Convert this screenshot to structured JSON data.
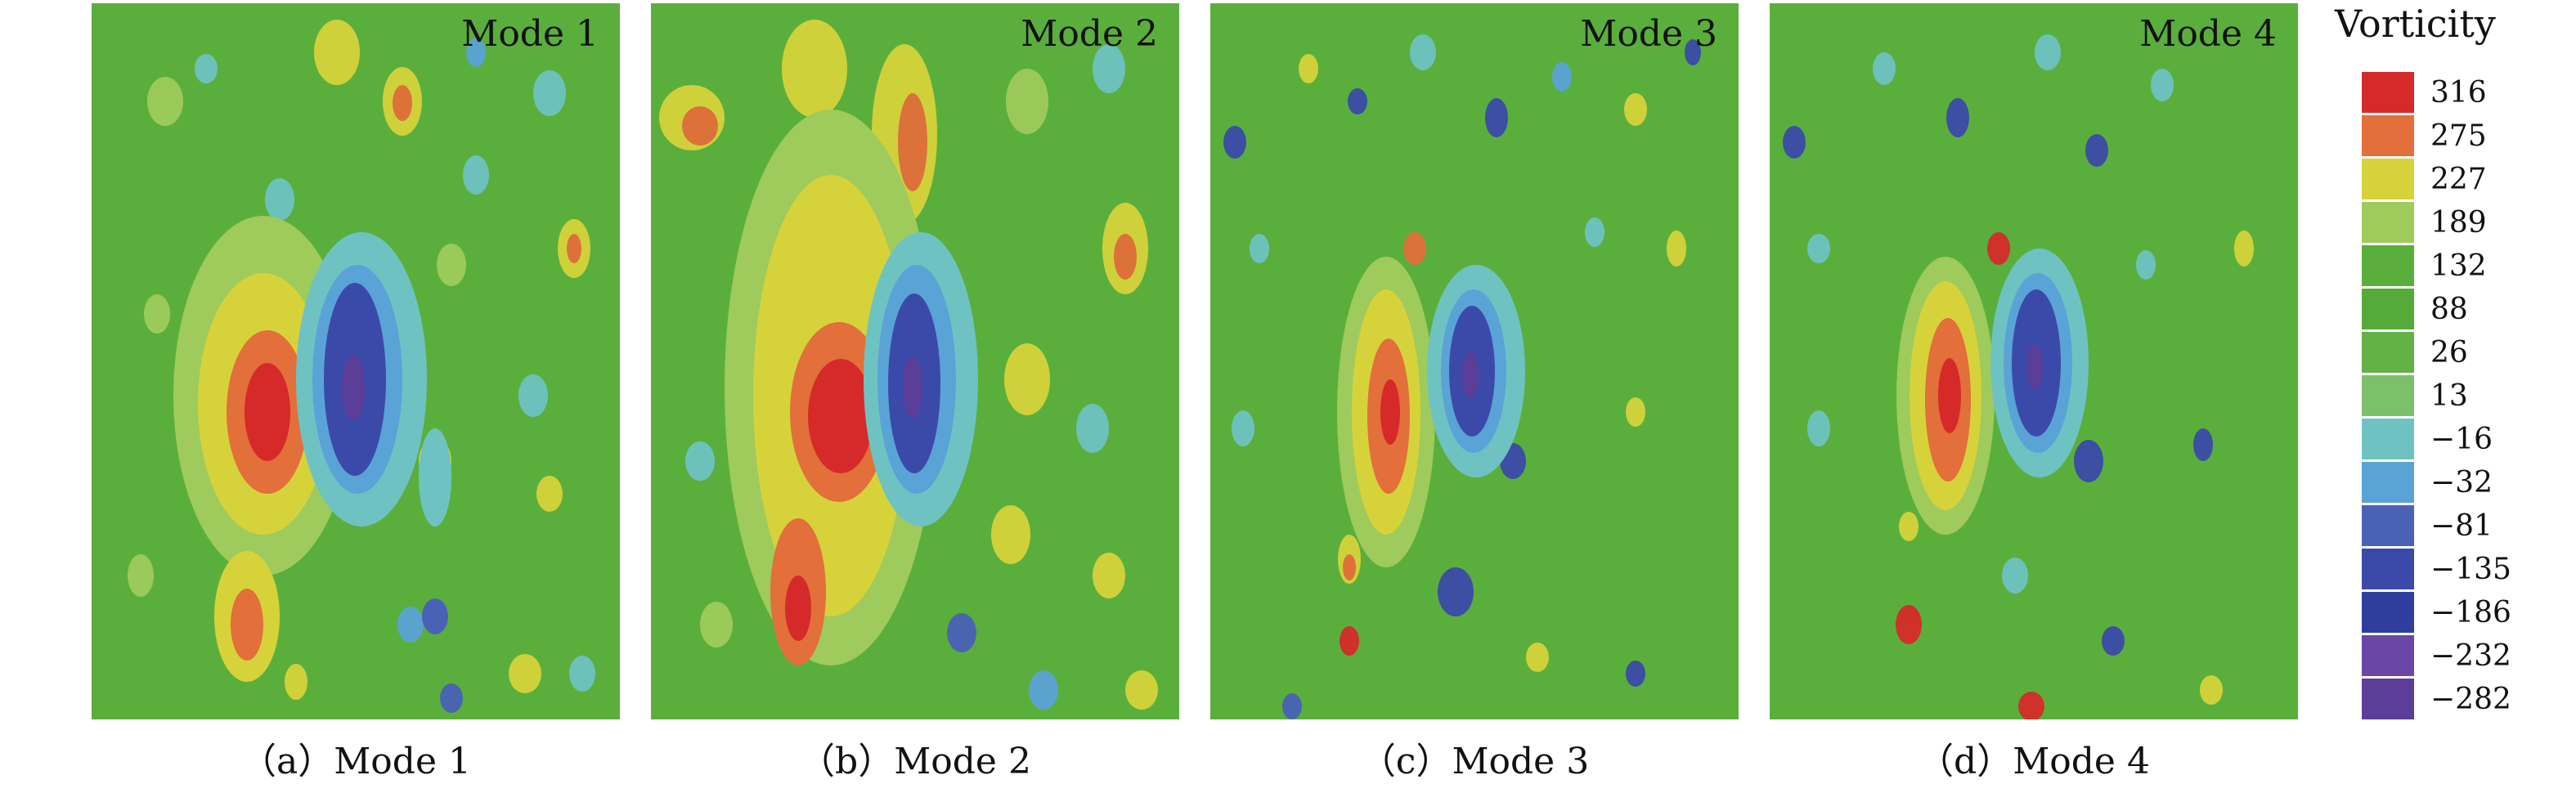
{
  "panels": [
    {
      "mode_label": "Mode 1",
      "caption": "（a）Mode 1"
    },
    {
      "mode_label": "Mode 2",
      "caption": "（b）Mode 2"
    },
    {
      "mode_label": "Mode 3",
      "caption": "（c）Mode 3"
    },
    {
      "mode_label": "Mode 4",
      "caption": "（d）Mode 4"
    }
  ],
  "legend": {
    "title": "Vorticity",
    "levels": [
      {
        "label": "316",
        "color": "#d62a2a"
      },
      {
        "label": "275",
        "color": "#e36f3a"
      },
      {
        "label": "227",
        "color": "#d6d33a"
      },
      {
        "label": "189",
        "color": "#9ecb5c"
      },
      {
        "label": "132",
        "color": "#5aaf3c"
      },
      {
        "label": "88",
        "color": "#55ab3a"
      },
      {
        "label": "26",
        "color": "#62b247"
      },
      {
        "label": "13",
        "color": "#7cc06a"
      },
      {
        "label": "−16",
        "color": "#6ec3c2"
      },
      {
        "label": "−32",
        "color": "#5aa3d6"
      },
      {
        "label": "−81",
        "color": "#4a62b6"
      },
      {
        "label": "−135",
        "color": "#3b4aa8"
      },
      {
        "label": "−186",
        "color": "#2f3e9e"
      },
      {
        "label": "−232",
        "color": "#6a47a6"
      },
      {
        "label": "−282",
        "color": "#5b3e98"
      }
    ]
  }
}
